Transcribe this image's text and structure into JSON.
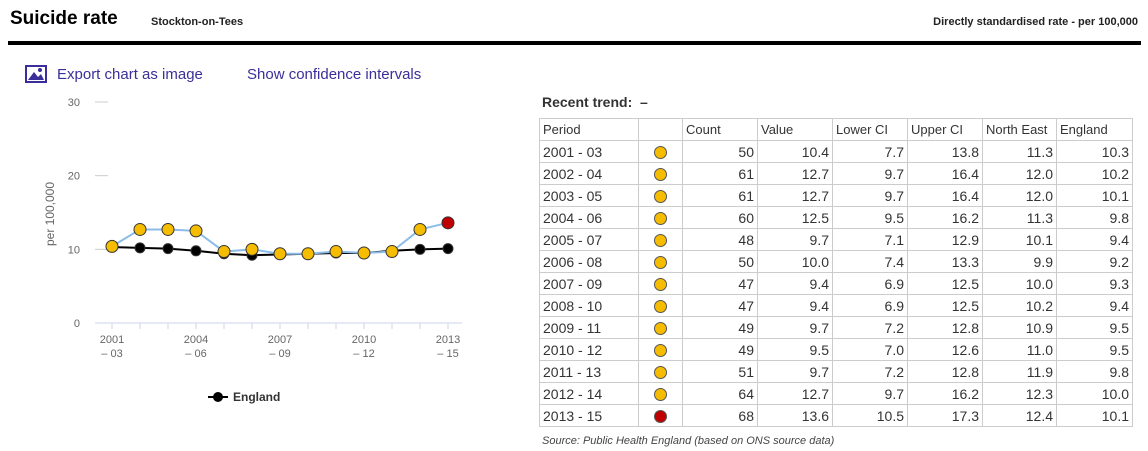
{
  "header": {
    "title": "Suicide rate",
    "area": "Stockton-on-Tees",
    "unit": "Directly standardised rate - per 100,000"
  },
  "links": [
    "Export chart as image",
    "Show confidence intervals"
  ],
  "chart_data": {
    "type": "line",
    "ylabel": "per 100,000",
    "categories": [
      "2001\n– 03",
      null,
      null,
      "2004\n– 06",
      null,
      null,
      "2007\n– 09",
      null,
      null,
      "2010\n– 12",
      null,
      null,
      "2013\n– 15"
    ],
    "ylim": [
      0,
      30
    ],
    "yticks": [
      0,
      10,
      20,
      30
    ],
    "series": [
      {
        "color": "#8bbde8",
        "point_colors": [
          "#f5bc00",
          "#f5bc00",
          "#f5bc00",
          "#f5bc00",
          "#f5bc00",
          "#f5bc00",
          "#f5bc00",
          "#f5bc00",
          "#f5bc00",
          "#f5bc00",
          "#f5bc00",
          "#f5bc00",
          "#c00000"
        ],
        "values": [
          10.4,
          12.7,
          12.7,
          12.5,
          9.7,
          10.0,
          9.4,
          9.4,
          9.7,
          9.5,
          9.7,
          12.7,
          13.6
        ]
      },
      {
        "name": "England",
        "color": "#000000",
        "values": [
          10.3,
          10.2,
          10.1,
          9.8,
          9.4,
          9.2,
          9.3,
          9.4,
          9.5,
          9.5,
          9.8,
          10.0,
          10.1
        ]
      }
    ]
  },
  "table": {
    "trend_label": "Recent trend:",
    "trend": "–",
    "columns": [
      "Period",
      "Count",
      "Value",
      "Lower CI",
      "Upper CI",
      "North East",
      "England"
    ],
    "status_colors": [
      "#f5bc00",
      "#f5bc00",
      "#f5bc00",
      "#f5bc00",
      "#f5bc00",
      "#f5bc00",
      "#f5bc00",
      "#f5bc00",
      "#f5bc00",
      "#f5bc00",
      "#f5bc00",
      "#f5bc00",
      "#c00000"
    ],
    "rows": [
      [
        "2001 - 03",
        "50",
        "10.4",
        "7.7",
        "13.8",
        "11.3",
        "10.3"
      ],
      [
        "2002 - 04",
        "61",
        "12.7",
        "9.7",
        "16.4",
        "12.0",
        "10.2"
      ],
      [
        "2003 - 05",
        "61",
        "12.7",
        "9.7",
        "16.4",
        "12.0",
        "10.1"
      ],
      [
        "2004 - 06",
        "60",
        "12.5",
        "9.5",
        "16.2",
        "11.3",
        "9.8"
      ],
      [
        "2005 - 07",
        "48",
        "9.7",
        "7.1",
        "12.9",
        "10.1",
        "9.4"
      ],
      [
        "2006 - 08",
        "50",
        "10.0",
        "7.4",
        "13.3",
        "9.9",
        "9.2"
      ],
      [
        "2007 - 09",
        "47",
        "9.4",
        "6.9",
        "12.5",
        "10.0",
        "9.3"
      ],
      [
        "2008 - 10",
        "47",
        "9.4",
        "6.9",
        "12.5",
        "10.2",
        "9.4"
      ],
      [
        "2009 - 11",
        "49",
        "9.7",
        "7.2",
        "12.8",
        "10.9",
        "9.5"
      ],
      [
        "2010 - 12",
        "49",
        "9.5",
        "7.0",
        "12.6",
        "11.0",
        "9.5"
      ],
      [
        "2011 - 13",
        "51",
        "9.7",
        "7.2",
        "12.8",
        "11.9",
        "9.8"
      ],
      [
        "2012 - 14",
        "64",
        "12.7",
        "9.7",
        "16.2",
        "12.3",
        "10.0"
      ],
      [
        "2013 - 15",
        "68",
        "13.6",
        "10.5",
        "17.3",
        "12.4",
        "10.1"
      ]
    ],
    "source": "Source: Public Health England (based on ONS source data)"
  }
}
